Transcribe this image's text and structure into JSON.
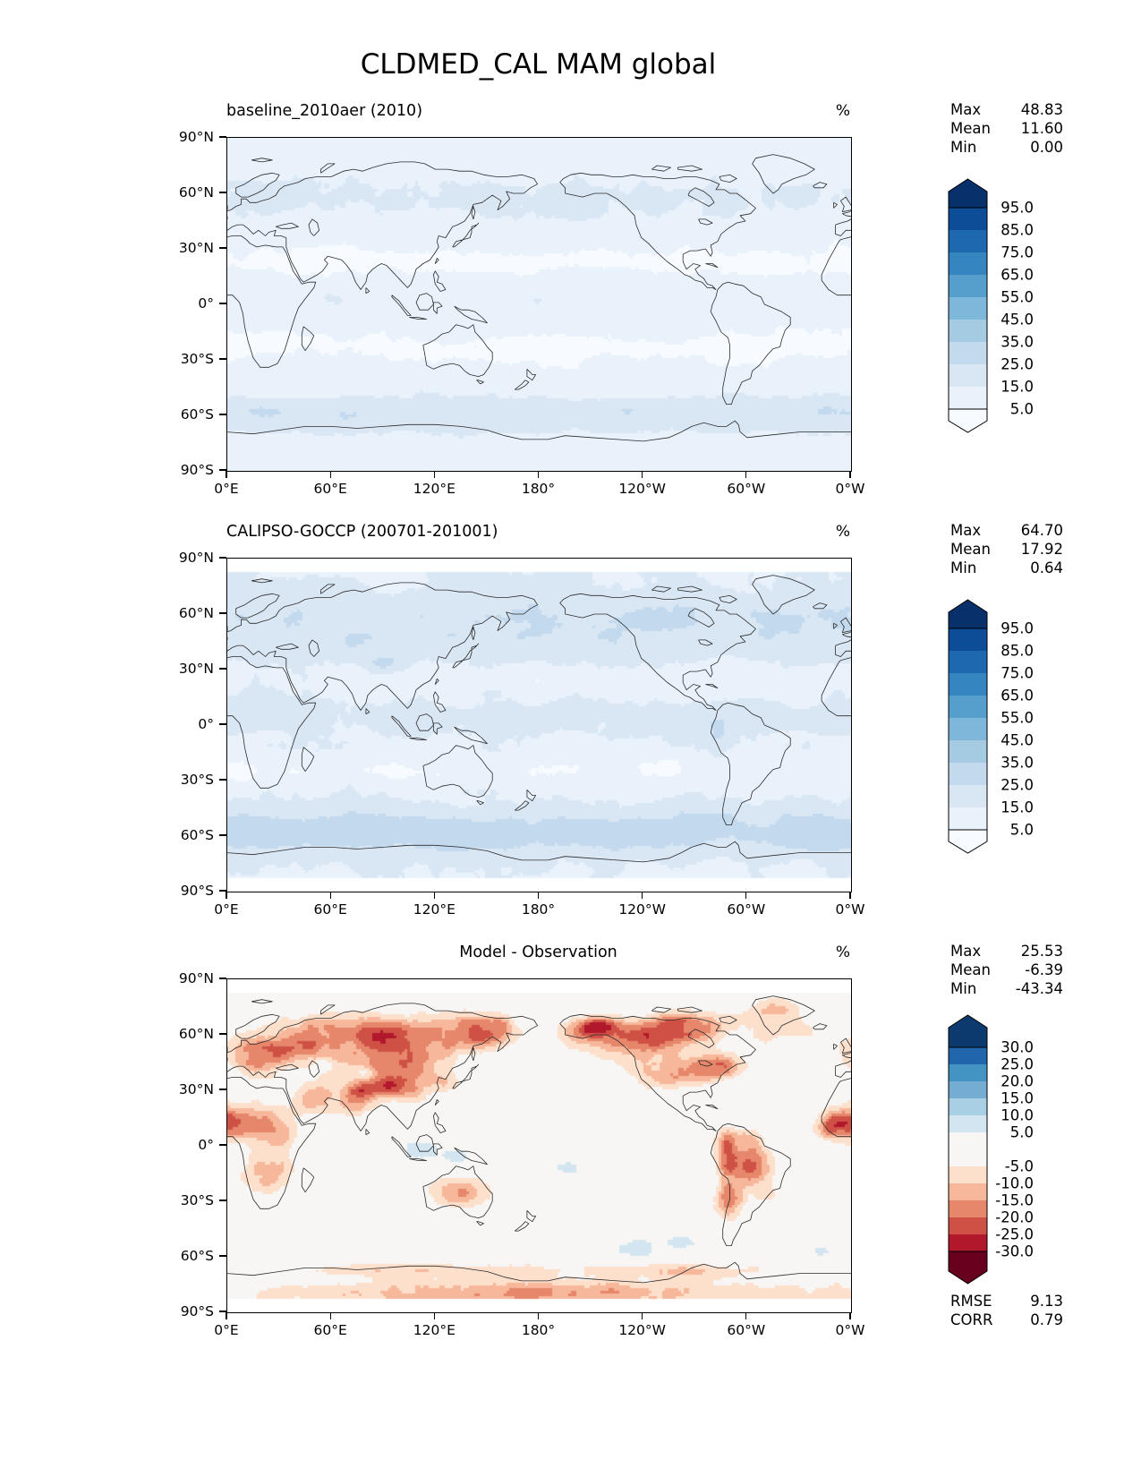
{
  "figure_title": "CLDMED_CAL MAM global",
  "panels": [
    {
      "key": "model",
      "title": "baseline_2010aer (2010)",
      "units": "%",
      "stats": {
        "max_label": "Max",
        "max_value": "48.83",
        "mean_label": "Mean",
        "mean_value": "11.60",
        "min_label": "Min",
        "min_value": "0.00"
      },
      "colorbar_ticks": [
        "95.0",
        "85.0",
        "75.0",
        "65.0",
        "55.0",
        "45.0",
        "35.0",
        "25.0",
        "15.0",
        "5.0"
      ]
    },
    {
      "key": "observation",
      "title": "CALIPSO-GOCCP (200701-201001)",
      "units": "%",
      "stats": {
        "max_label": "Max",
        "max_value": "64.70",
        "mean_label": "Mean",
        "mean_value": "17.92",
        "min_label": "Min",
        "min_value": "0.64"
      },
      "colorbar_ticks": [
        "95.0",
        "85.0",
        "75.0",
        "65.0",
        "55.0",
        "45.0",
        "35.0",
        "25.0",
        "15.0",
        "5.0"
      ]
    },
    {
      "key": "difference",
      "title": "Model - Observation",
      "units": "%",
      "stats": {
        "max_label": "Max",
        "max_value": "25.53",
        "mean_label": "Mean",
        "mean_value": "-6.39",
        "min_label": "Min",
        "min_value": "-43.34"
      },
      "colorbar_ticks": [
        "30.0",
        "25.0",
        "20.0",
        "15.0",
        "10.0",
        "5.0",
        "-5.0",
        "-10.0",
        "-15.0",
        "-20.0",
        "-25.0",
        "-30.0"
      ],
      "rmse_label": "RMSE",
      "rmse_value": "9.13",
      "corr_label": "CORR",
      "corr_value": "0.79"
    }
  ],
  "axes": {
    "lat_ticks": [
      "90°N",
      "60°N",
      "30°N",
      "0°",
      "30°S",
      "60°S",
      "90°S"
    ],
    "lon_ticks": [
      "0°E",
      "60°E",
      "120°E",
      "180°",
      "120°W",
      "60°W",
      "0°W"
    ]
  },
  "colors": {
    "blues": [
      "#f7fbff",
      "#e9f2fb",
      "#d9e7f5",
      "#c3daee",
      "#a5cbe3",
      "#7db8da",
      "#569fcd",
      "#3585c0",
      "#1d68ae",
      "#0d4c97",
      "#08306b"
    ],
    "rdbu": [
      "#0d3a6e",
      "#2166ac",
      "#4393c3",
      "#74add1",
      "#a9cfe4",
      "#d3e5f0",
      "#f7f6f4",
      "#fce0cc",
      "#f7b79a",
      "#e6866a",
      "#cf5146",
      "#b2182b",
      "#67001f"
    ],
    "coastline": "#2b2b2b",
    "frame": "#000000"
  },
  "chart_data": {
    "type": "heatmap",
    "variable": "CLDMED_CAL (mid-level cloud cover, CALIPSO simulator)",
    "season_region": "MAM global",
    "projection": "equirectangular world maps, longitude 0°E to 0°W (centered on 180°), latitude 90°N to 90°S",
    "x_ticks_deg": [
      0,
      60,
      120,
      180,
      240,
      300,
      360
    ],
    "y_ticks_deg": [
      90,
      60,
      30,
      0,
      -30,
      -60,
      -90
    ],
    "panels": [
      {
        "title": "baseline_2010aer (2010)",
        "units": "%",
        "max": 48.83,
        "mean": 11.6,
        "min": 0.0,
        "colormap": "Blues, discrete levels",
        "level_boundaries": [
          5,
          15,
          25,
          35,
          45,
          55,
          65,
          75,
          85,
          95
        ],
        "extend": "both",
        "pattern": "pale blue field; stronger 25-35% band over Southern Ocean 50-70S, moderate 15-25% band 40-70N, near-white subtropics, light tropical band"
      },
      {
        "title": "CALIPSO-GOCCP (200701-201001)",
        "units": "%",
        "max": 64.7,
        "mean": 17.92,
        "min": 0.64,
        "colormap": "Blues, discrete levels",
        "level_boundaries": [
          5,
          15,
          25,
          35,
          45,
          55,
          65,
          75,
          85,
          95
        ],
        "extend": "both",
        "no_data_mask": "white poleward of ~83N and ~82S",
        "pattern": "stronger than model everywhere: 35-45% Southern Ocean storm track, 25-35% NH mid/high latitudes, dark patch over Tibet/central Asia and Peru/Andes, pale subtropical ocean minima"
      },
      {
        "title": "Model - Observation",
        "units": "%",
        "max": 25.53,
        "mean": -6.39,
        "min": -43.34,
        "rmse": 9.13,
        "corr": 0.79,
        "colormap": "RdBu diverging, discrete levels",
        "level_boundaries": [
          -30,
          -25,
          -20,
          -15,
          -10,
          -5,
          5,
          10,
          15,
          20,
          25,
          30
        ],
        "extend": "both",
        "no_data_mask": "white poleward of ~83N and ~82S",
        "pattern": "negative (red) bias over most land: strongest (-20 to -35) over Siberia, eastern Europe, Tibet/Himalaya, Canada/Alaska, Andes, Sahel; oceans near zero (white) with light red speckle; small positive (blue) patches over Maritime Continent, Tarim/Caspian, SE Pacific ~55S"
      }
    ]
  }
}
